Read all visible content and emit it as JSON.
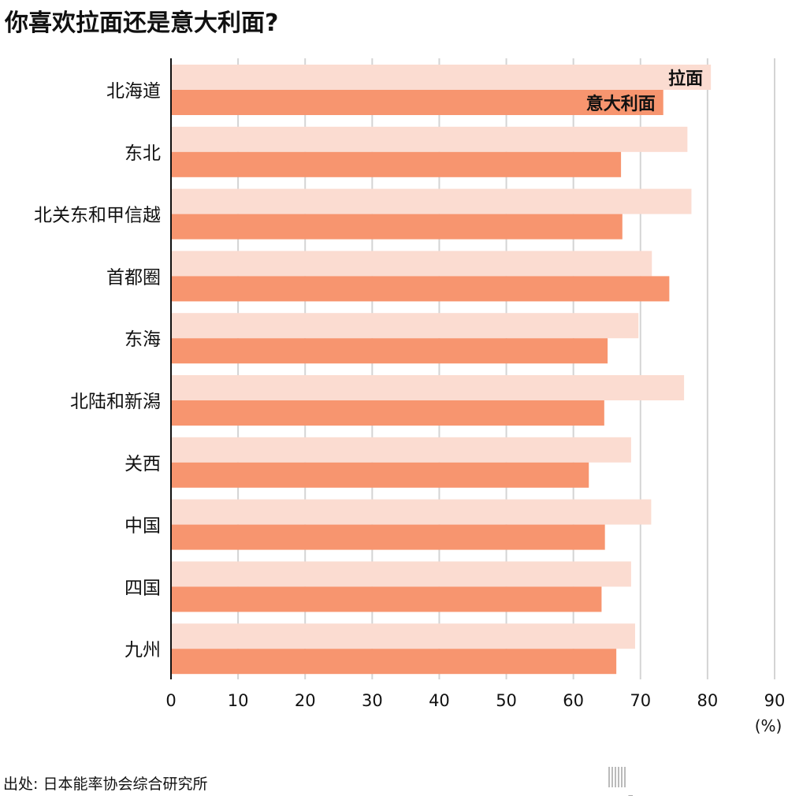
{
  "title": "你喜欢拉面还是意大利面?",
  "source": "出处: 日本能率协会综合研究所",
  "logo": {
    "name": "nippon",
    "dot": ".",
    "tld": "com"
  },
  "colors": {
    "ramen": "#fbdcd1",
    "pasta": "#f7956f",
    "grid": "#d4d4d4",
    "axis": "#111111"
  },
  "chart_data": {
    "type": "bar",
    "orientation": "horizontal",
    "categories": [
      "北海道",
      "东北",
      "北关东和甲信越",
      "首都圈",
      "东海",
      "北陆和新潟",
      "关西",
      "中国",
      "四国",
      "九州"
    ],
    "series": [
      {
        "name": "拉面",
        "values": [
          80.5,
          77.0,
          77.6,
          71.7,
          69.7,
          76.5,
          68.6,
          71.6,
          68.6,
          69.2
        ]
      },
      {
        "name": "意大利面",
        "values": [
          73.4,
          67.1,
          67.3,
          74.3,
          65.1,
          64.6,
          62.3,
          64.7,
          64.2,
          66.4
        ]
      }
    ],
    "xlim": [
      0,
      90
    ],
    "xticks": [
      "0",
      "10",
      "20",
      "30",
      "40",
      "50",
      "60",
      "70",
      "80",
      "90"
    ],
    "xunit": "(%)",
    "grid": true,
    "legend": "inline labels on first category bars"
  }
}
